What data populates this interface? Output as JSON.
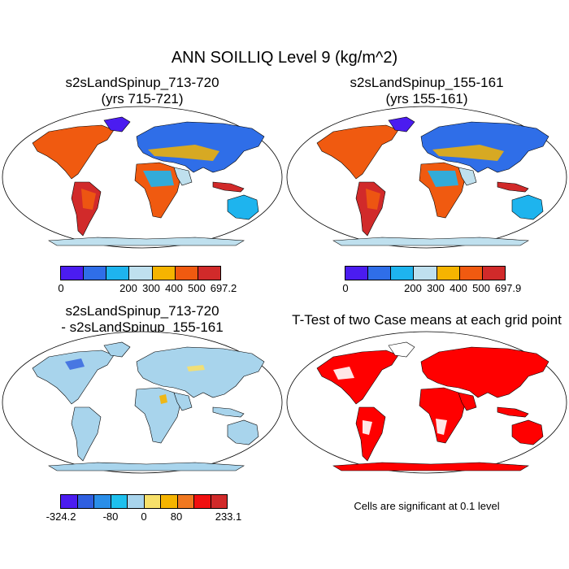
{
  "figure": {
    "title": "ANN SOILLIQ Level 9 (kg/m^2)"
  },
  "panels": [
    {
      "id": "case1",
      "title_line1": "s2sLandSpinup_713-720",
      "title_line2": "(yrs 715-721)",
      "colorbar": {
        "colors": [
          "#4b1cf0",
          "#2f6ee8",
          "#1eb4ee",
          "#bfe0ee",
          "#f5b400",
          "#f05a10",
          "#d12a2a"
        ],
        "ticks": [
          "0",
          "200",
          "300",
          "400",
          "500",
          "697.2"
        ]
      }
    },
    {
      "id": "case2",
      "title_line1": "s2sLandSpinup_155-161",
      "title_line2": "(yrs 155-161)",
      "colorbar": {
        "colors": [
          "#4b1cf0",
          "#2f6ee8",
          "#1eb4ee",
          "#bfe0ee",
          "#f5b400",
          "#f05a10",
          "#d12a2a"
        ],
        "ticks": [
          "0",
          "200",
          "300",
          "400",
          "500",
          "697.9"
        ]
      }
    },
    {
      "id": "difference",
      "title_line1": "s2sLandSpinup_713-720",
      "title_line2": "- s2sLandSpinup_155-161",
      "colorbar": {
        "colors": [
          "#4b1cf0",
          "#2f5fe0",
          "#2a8ee8",
          "#1ec0ee",
          "#a8d4ec",
          "#f7e06a",
          "#f5b400",
          "#f07820",
          "#f01010",
          "#d12a2a"
        ],
        "ticks": [
          "-324.2",
          "-80",
          "0",
          "80",
          "233.1"
        ]
      }
    },
    {
      "id": "ttest",
      "title_line1": "T-Test of two Case means at each grid point",
      "note": "Cells are significant at 0.1 level",
      "significant_color": "#ff0000"
    }
  ]
}
